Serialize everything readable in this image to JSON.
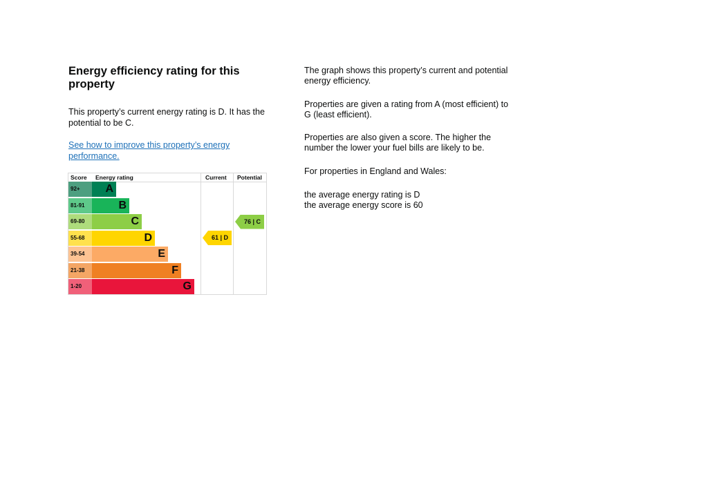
{
  "left": {
    "title": "Energy efficiency rating for this property",
    "summary": "This property’s current energy rating is D. It has the potential to be C.",
    "improve_link": "See how to improve this property’s energy performance."
  },
  "right": {
    "p1": "The graph shows this property’s current and potential energy efficiency.",
    "p2": "Properties are given a rating from A (most efficient) to G (least efficient).",
    "p3": "Properties are also given a score. The higher the number the lower your fuel bills are likely to be.",
    "p4": "For properties in England and Wales:",
    "avg_rating": "the average energy rating is D",
    "avg_score": "the average energy score is 60"
  },
  "chart": {
    "headers": {
      "score": "Score",
      "rating": "Energy rating",
      "current": "Current",
      "potential": "Potential"
    },
    "bands": [
      {
        "range": "92+",
        "letter": "A",
        "color": "#008054",
        "score_bg": "#4d9f80"
      },
      {
        "range": "81-91",
        "letter": "B",
        "color": "#19b459",
        "score_bg": "#5ec98a"
      },
      {
        "range": "69-80",
        "letter": "C",
        "color": "#8dce46",
        "score_bg": "#aedc7c"
      },
      {
        "range": "55-68",
        "letter": "D",
        "color": "#ffd500",
        "score_bg": "#ffe14d"
      },
      {
        "range": "39-54",
        "letter": "E",
        "color": "#fcaa65",
        "score_bg": "#fdc393"
      },
      {
        "range": "21-38",
        "letter": "F",
        "color": "#ef8023",
        "score_bg": "#f4a665"
      },
      {
        "range": "1-20",
        "letter": "G",
        "color": "#e9153b",
        "score_bg": "#f06079"
      }
    ],
    "current": {
      "score": 61,
      "letter": "D",
      "label": "61 | D",
      "color": "#ffd500"
    },
    "potential": {
      "score": 76,
      "letter": "C",
      "label": "76 | C",
      "color": "#8dce46"
    }
  }
}
